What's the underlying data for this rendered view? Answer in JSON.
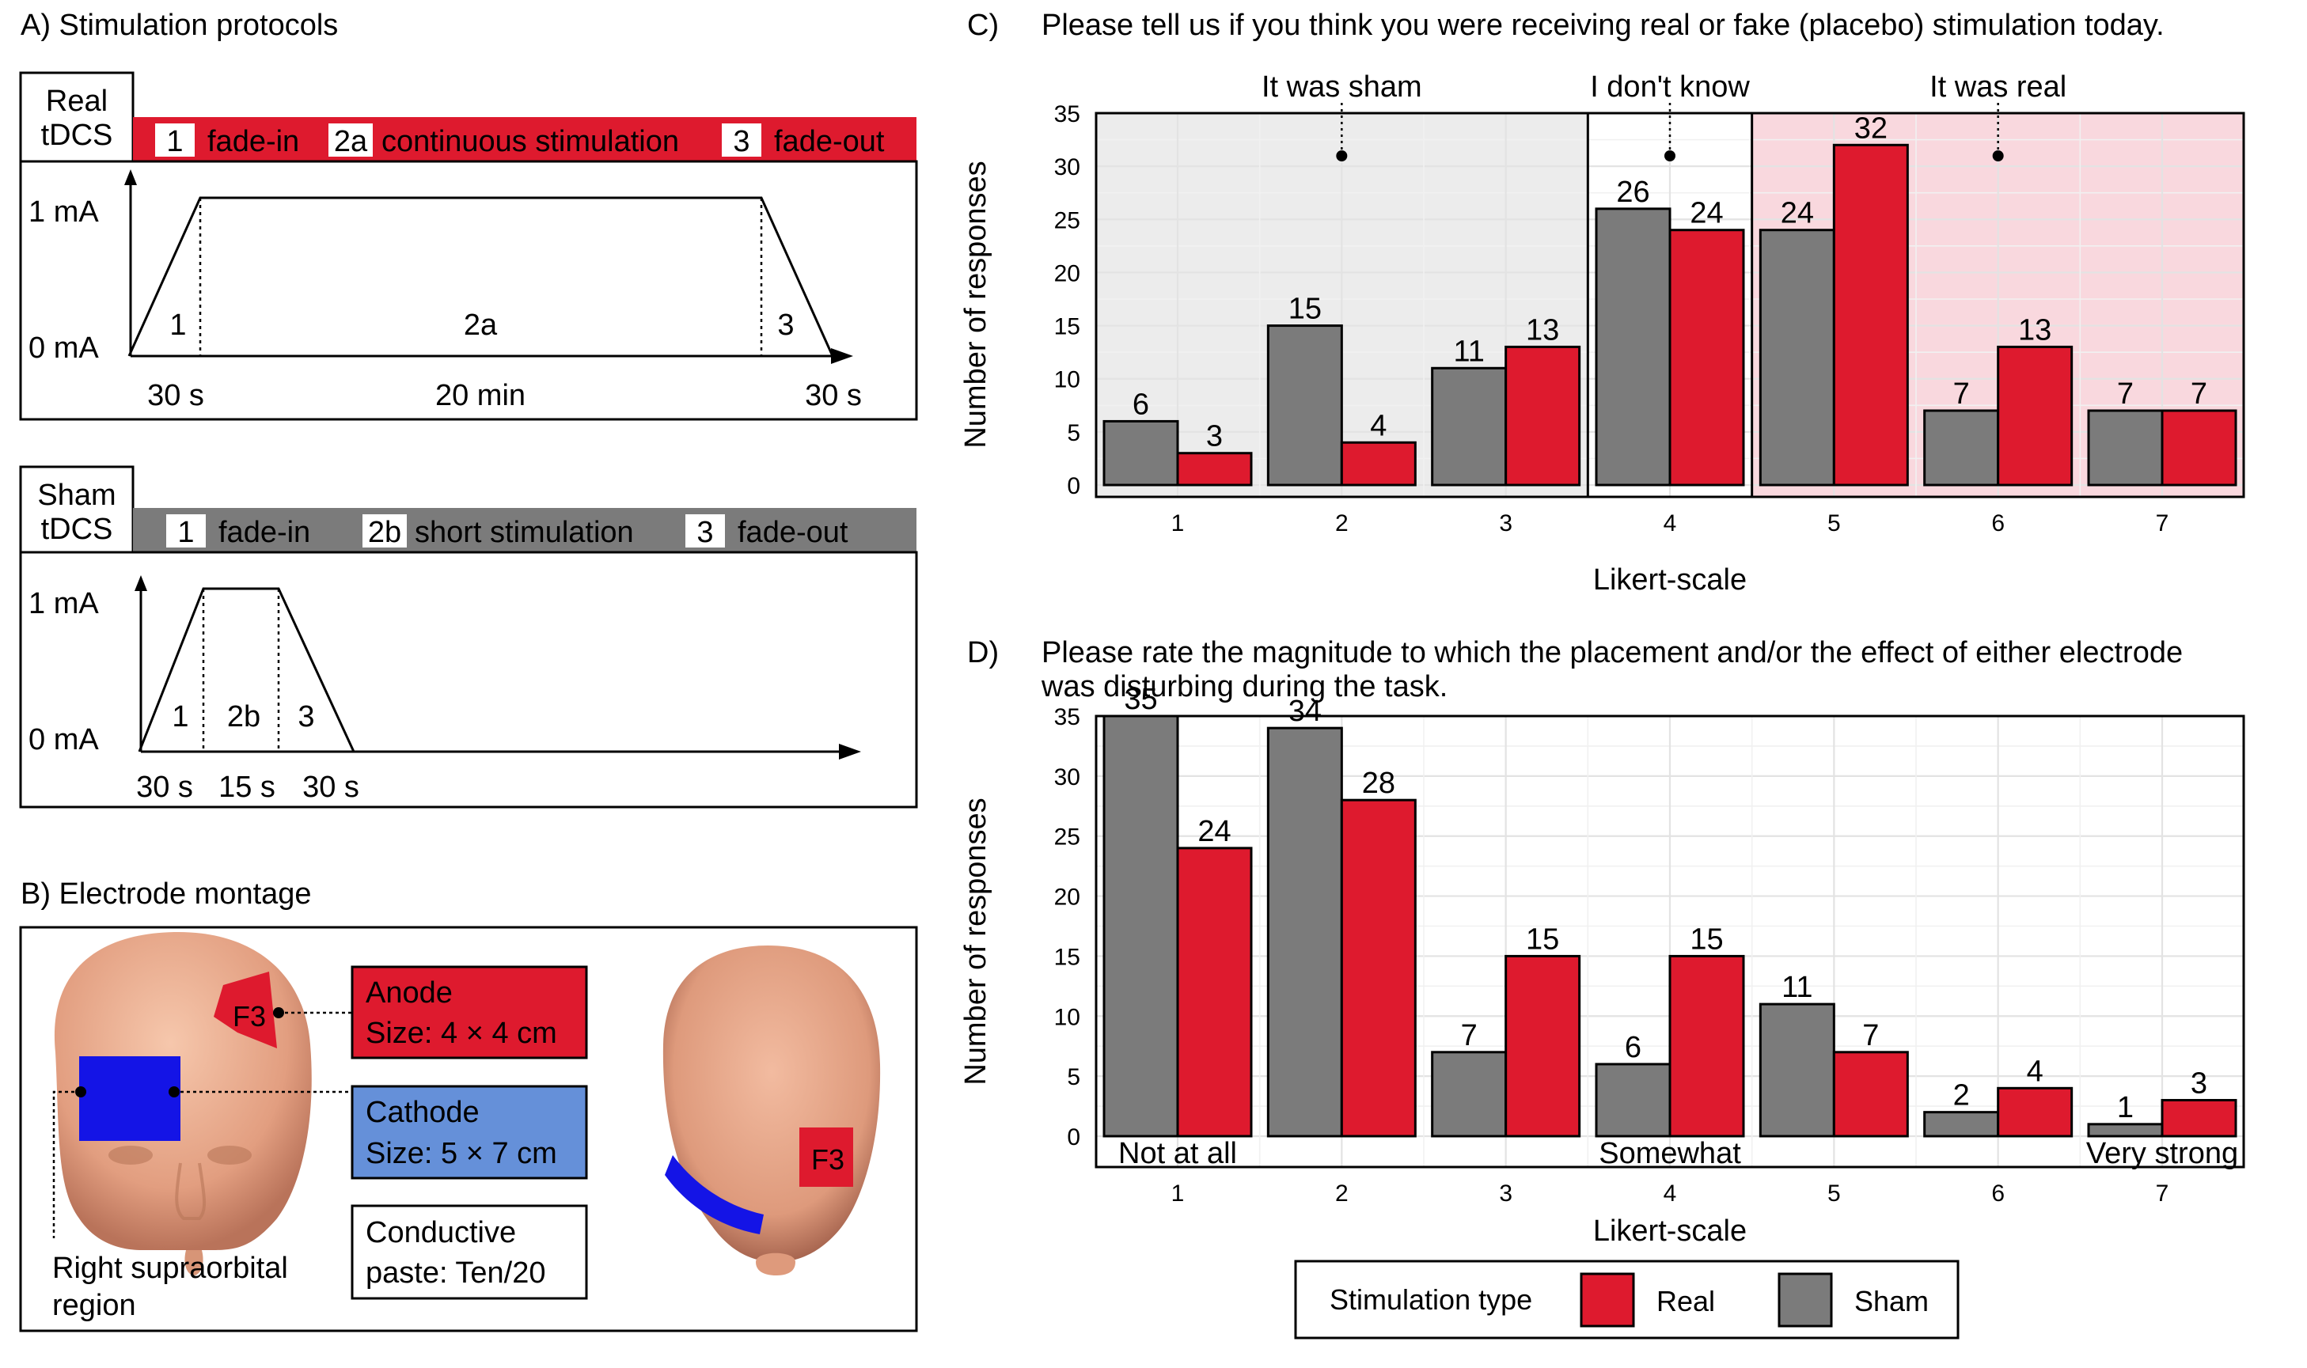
{
  "colors": {
    "real": "#DE1A2E",
    "sham": "#7B7B7B",
    "sham_band": "#ECECEC",
    "real_band": "#F9D8DE",
    "cathode_box": "#6590D9",
    "cathode_electrode": "#1414E6",
    "skin": "#E7A98A"
  },
  "panel_a": {
    "title": "A)  Stimulation protocols",
    "real": {
      "label_line1": "Real",
      "label_line2": "tDCS",
      "phases": [
        {
          "num": "1",
          "label": "fade-in"
        },
        {
          "num": "2a",
          "label": "continuous stimulation"
        },
        {
          "num": "3",
          "label": "fade-out"
        }
      ],
      "y_top": "1 mA",
      "y_bottom": "0 mA",
      "segment_labels": [
        "1",
        "2a",
        "3"
      ],
      "durations": [
        "30 s",
        "20 min",
        "30 s"
      ]
    },
    "sham": {
      "label_line1": "Sham",
      "label_line2": "tDCS",
      "phases": [
        {
          "num": "1",
          "label": "fade-in"
        },
        {
          "num": "2b",
          "label": "short stimulation"
        },
        {
          "num": "3",
          "label": "fade-out"
        }
      ],
      "y_top": "1 mA",
      "y_bottom": "0 mA",
      "segment_labels": [
        "1",
        "2b",
        "3"
      ],
      "durations": [
        "30 s",
        "15 s",
        "30 s"
      ]
    }
  },
  "panel_b": {
    "title": "B)  Electrode montage",
    "anode": {
      "line1": "Anode",
      "line2": "Size: 4 × 4 cm"
    },
    "cathode": {
      "line1": "Cathode",
      "line2": "Size: 5 × 7 cm"
    },
    "paste": {
      "line1": "Conductive",
      "line2": "paste: Ten/20"
    },
    "electrode_label": "F3",
    "site_line1": "Right supraorbital",
    "site_line2": "region"
  },
  "chart_data": [
    {
      "type": "bar",
      "panel": "C)",
      "title": "Please tell us if you think you were receiving real or fake (placebo) stimulation today.",
      "xlabel": "Likert-scale",
      "ylabel": "Number of responses",
      "categories": [
        "1",
        "2",
        "3",
        "4",
        "5",
        "6",
        "7"
      ],
      "ylim": [
        0,
        35
      ],
      "yticks": [
        0,
        5,
        10,
        15,
        20,
        25,
        30,
        35
      ],
      "series": [
        {
          "name": "Sham",
          "values": [
            6,
            15,
            11,
            26,
            24,
            7,
            7
          ]
        },
        {
          "name": "Real",
          "values": [
            3,
            4,
            13,
            24,
            32,
            13,
            7
          ]
        }
      ],
      "annotations": [
        "It was sham",
        "I don't know",
        "It was real"
      ]
    },
    {
      "type": "bar",
      "panel": "D)",
      "title_line1": "Please rate the magnitude to which the placement and/or the effect of either electrode",
      "title_line2": "was disturbing during the task.",
      "xlabel": "Likert-scale",
      "ylabel": "Number of responses",
      "categories": [
        "1",
        "2",
        "3",
        "4",
        "5",
        "6",
        "7"
      ],
      "ylim": [
        0,
        35
      ],
      "yticks": [
        0,
        5,
        10,
        15,
        20,
        25,
        30,
        35
      ],
      "series": [
        {
          "name": "Sham",
          "values": [
            35,
            34,
            7,
            6,
            11,
            2,
            1
          ]
        },
        {
          "name": "Real",
          "values": [
            24,
            28,
            15,
            15,
            7,
            4,
            3
          ]
        }
      ],
      "annotations": [
        "Not at all",
        "Somewhat",
        "Very strong"
      ]
    }
  ],
  "legend": {
    "title": "Stimulation type",
    "items": [
      "Real",
      "Sham"
    ]
  }
}
